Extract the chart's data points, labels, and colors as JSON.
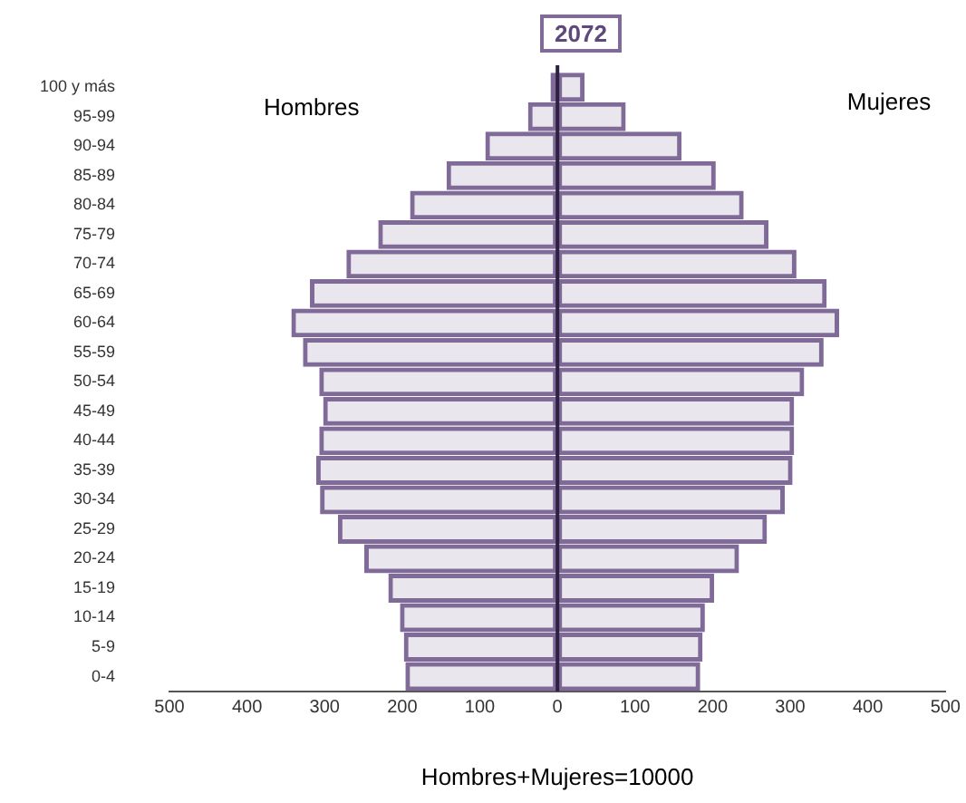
{
  "chart_data": {
    "type": "bar",
    "orientation": "horizontal",
    "stacked": true,
    "title": "2072",
    "xlabel": "Hombres+Mujeres=10000",
    "categories": [
      "100 y más",
      "95-99",
      "90-94",
      "85-89",
      "80-84",
      "75-79",
      "70-74",
      "65-69",
      "60-64",
      "55-59",
      "50-54",
      "45-49",
      "40-44",
      "35-39",
      "30-34",
      "25-29",
      "20-24",
      "15-19",
      "10-14",
      "5-9",
      "0-4"
    ],
    "series": [
      {
        "color": "#7f6a98",
        "values": [
          -9,
          -38,
          -93,
          -143,
          -190,
          -231,
          -272,
          -319,
          -343,
          -328,
          -307,
          -302,
          -307,
          -311,
          -306,
          -283,
          -249,
          -218,
          -203,
          -198,
          -196
        ]
      },
      {
        "color": "#7f6a98",
        "values": [
          35,
          88,
          160,
          204,
          240,
          272,
          308,
          347,
          363,
          343,
          318,
          305,
          305,
          303,
          293,
          270,
          234,
          202,
          190,
          187,
          184
        ]
      }
    ],
    "xlim": [
      -500,
      500
    ],
    "xticks": [
      {
        "value": -500,
        "label": "500"
      },
      {
        "value": -400,
        "label": "400"
      },
      {
        "value": -300,
        "label": "300"
      },
      {
        "value": -200,
        "label": "200"
      },
      {
        "value": -100,
        "label": "100"
      },
      0,
      100,
      200,
      300,
      400,
      500
    ],
    "annotations": [
      "Hombres",
      "Mujeres"
    ],
    "ref_lines": [
      {
        "axis": "x",
        "value": 0,
        "color": "#2e2040"
      }
    ],
    "grid": false,
    "legend": false
  }
}
